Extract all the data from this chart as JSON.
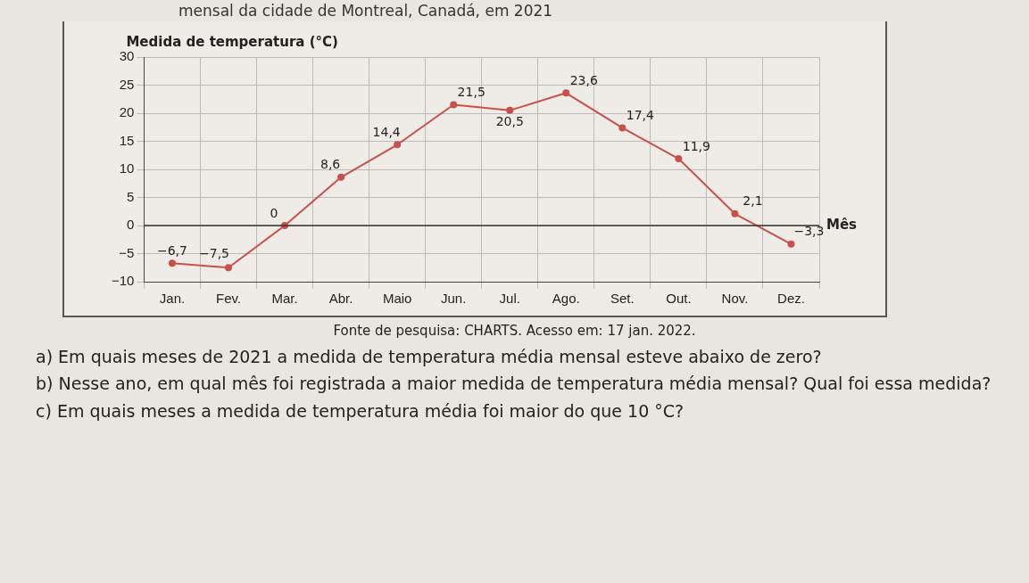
{
  "chart_data": {
    "type": "line",
    "title": "mensal da cidade de Montreal, Canadá, em 2021",
    "ylabel": "Medida de temperatura (°C)",
    "xlabel": "Mês",
    "categories": [
      "Jan.",
      "Fev.",
      "Mar.",
      "Abr.",
      "Maio",
      "Jun.",
      "Jul.",
      "Ago.",
      "Set.",
      "Out.",
      "Nov.",
      "Dez."
    ],
    "series": [
      {
        "color": "#c8504a",
        "values": [
          -6.7,
          -7.5,
          0,
          8.6,
          14.4,
          21.5,
          20.5,
          23.6,
          17.4,
          11.9,
          2.1,
          -3.3
        ],
        "value_labels": [
          "−6,7",
          "−7,5",
          "0",
          "8,6",
          "14,4",
          "21,5",
          "20,5",
          "23,6",
          "17,4",
          "11,9",
          "2,1",
          "−3,3"
        ]
      }
    ],
    "ylim": [
      -10,
      30
    ],
    "yticks": [
      -10,
      -5,
      0,
      5,
      10,
      15,
      20,
      25,
      30
    ],
    "grid": true,
    "legend": false,
    "marker": "circle",
    "line_style": "solid",
    "annotations": [
      "Fonte de pesquisa: CHARTS. Acesso em: 17 jan. 2022.",
      "a) Em quais meses de 2021 a medida de temperatura média mensal esteve abaixo de zero?",
      "b) Nesse ano, em qual mês foi registrada a maior medida de temperatura média mensal? Qual foi essa medida?",
      "c) Em quais meses a medida de temperatura média foi maior do que 10 °C?"
    ]
  }
}
